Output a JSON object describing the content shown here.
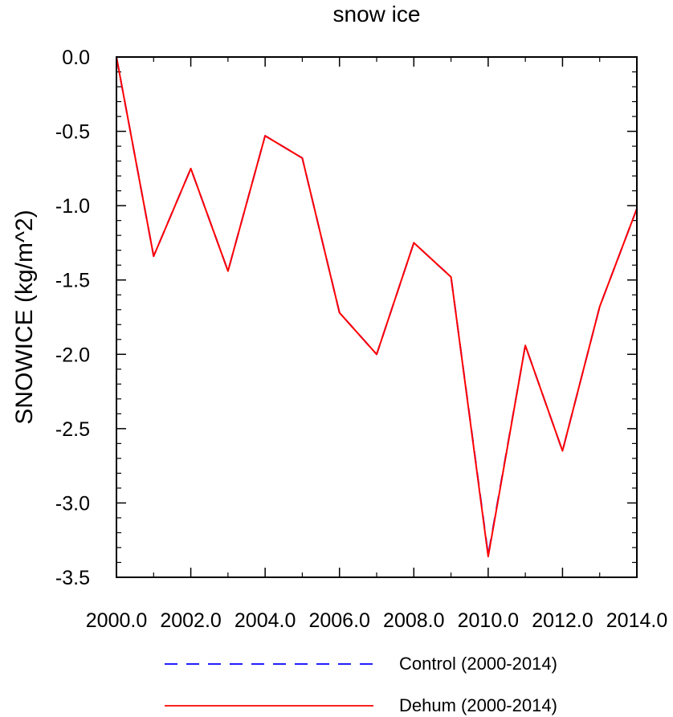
{
  "chart_data": {
    "type": "line",
    "title": "snow ice",
    "xlabel": "",
    "ylabel": "SNOWICE  (kg/m^2)",
    "xlim": [
      2000,
      2014
    ],
    "ylim": [
      -3.5,
      0
    ],
    "x_ticks": [
      2000,
      2002,
      2004,
      2006,
      2008,
      2010,
      2012,
      2014
    ],
    "x_tick_labels": [
      "2000.0",
      "2002.0",
      "2004.0",
      "2006.0",
      "2008.0",
      "2010.0",
      "2012.0",
      "2014.0"
    ],
    "y_ticks": [
      0,
      -0.5,
      -1.0,
      -1.5,
      -2.0,
      -2.5,
      -3.0,
      -3.5
    ],
    "y_tick_labels": [
      "0.0",
      "-0.5",
      "-1.0",
      "-1.5",
      "-2.0",
      "-2.5",
      "-3.0",
      "-3.5"
    ],
    "x": [
      2000,
      2001,
      2002,
      2003,
      2004,
      2005,
      2006,
      2007,
      2008,
      2009,
      2010,
      2011,
      2012,
      2013,
      2014
    ],
    "series": [
      {
        "name": "Control (2000-2014)",
        "color": "#0000ff",
        "style": "dashed",
        "values": [
          0.0,
          -1.34,
          -0.75,
          -1.44,
          -0.53,
          -0.68,
          -1.72,
          -2.0,
          -1.25,
          -1.48,
          -3.35,
          -1.94,
          -2.65,
          -1.68,
          -1.02
        ]
      },
      {
        "name": "Dehum (2000-2014)",
        "color": "#ff0000",
        "style": "solid",
        "values": [
          0.0,
          -1.34,
          -0.75,
          -1.44,
          -0.53,
          -0.68,
          -1.72,
          -2.0,
          -1.25,
          -1.48,
          -3.36,
          -1.94,
          -2.65,
          -1.68,
          -1.02
        ]
      }
    ],
    "grid": false,
    "legend_position": "bottom"
  }
}
